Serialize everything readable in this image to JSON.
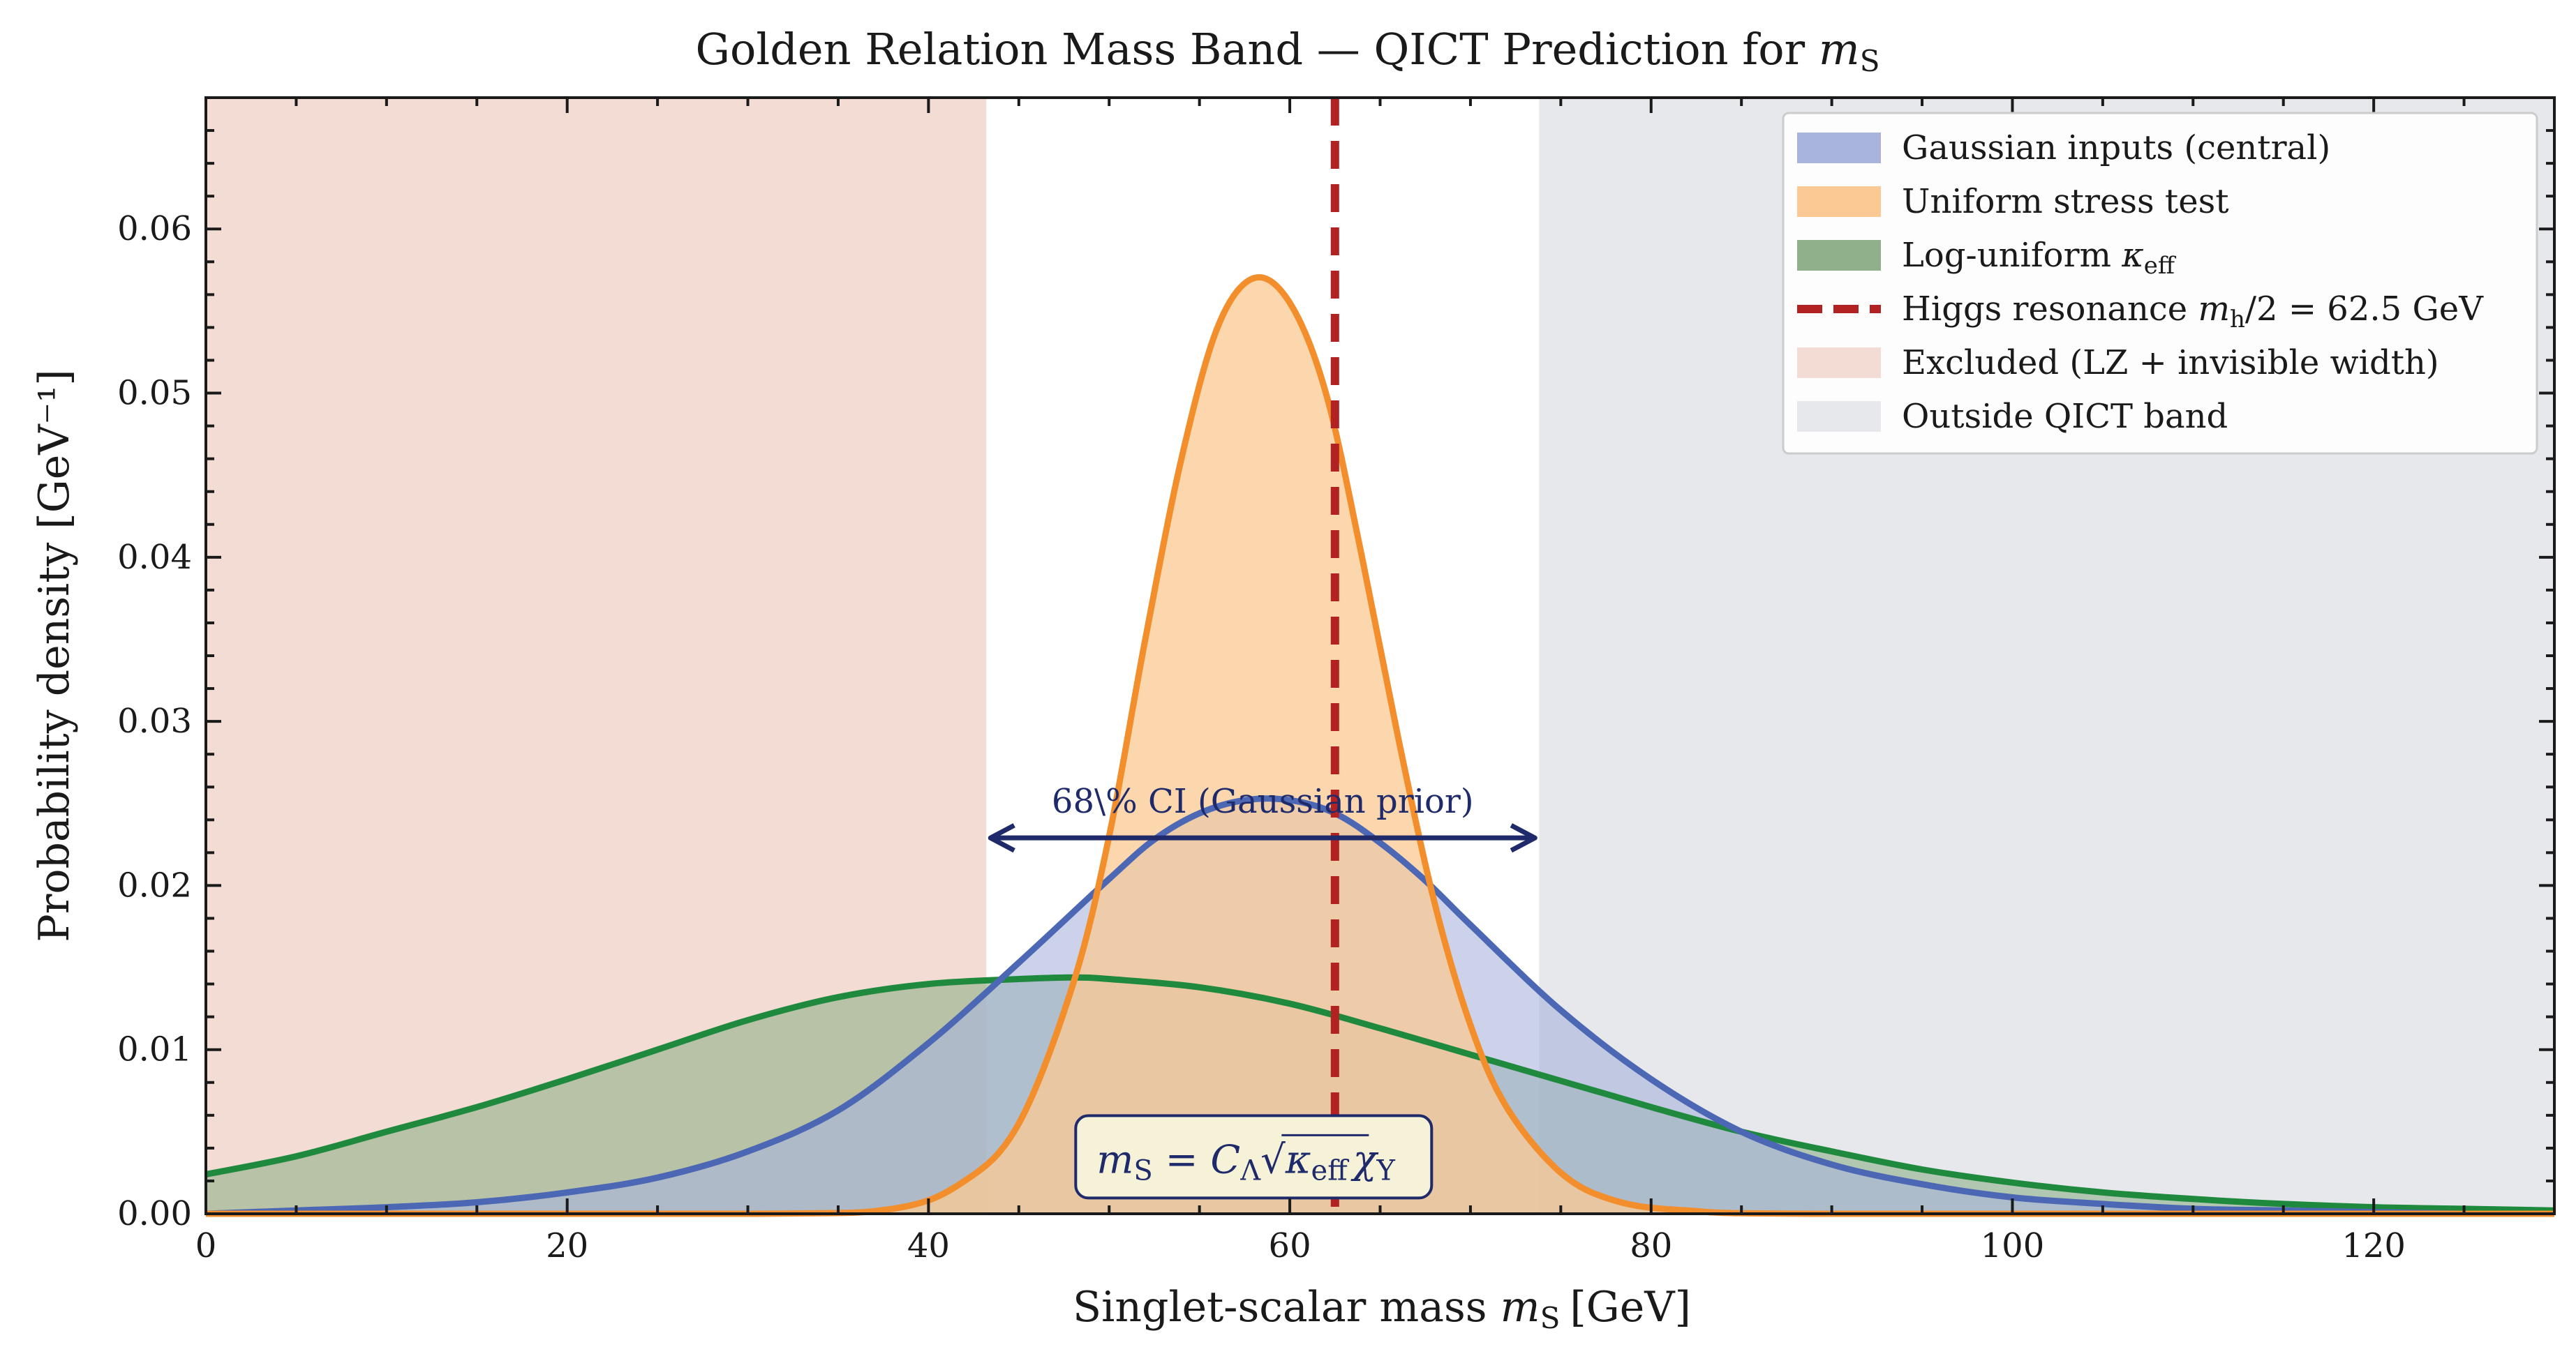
{
  "chart_data": {
    "type": "area",
    "title": "Golden Relation Mass Band — QICT Prediction for",
    "title_symbol": "m",
    "title_symbol_sub": "S",
    "xlabel": "Singlet-scalar mass",
    "xlabel_symbol": "m",
    "xlabel_symbol_sub": "S",
    "xlabel_unit": "[GeV]",
    "ylabel": "Probability density [GeV⁻¹]",
    "xlim": [
      0,
      130
    ],
    "ylim": [
      0,
      0.068
    ],
    "x_ticks": [
      0,
      20,
      40,
      60,
      80,
      100,
      120
    ],
    "y_ticks": [
      0.0,
      0.01,
      0.02,
      0.03,
      0.04,
      0.05,
      0.06
    ],
    "grid": false,
    "legend_position": "top-right",
    "series": [
      {
        "name": "Gaussian inputs (central)",
        "color": "#4c67b3",
        "fill": "#a9b4dc",
        "x": [
          0,
          5,
          10,
          15,
          20,
          25,
          30,
          35,
          40,
          45,
          50,
          52.5,
          55,
          57.5,
          60,
          62.5,
          65,
          67.5,
          70,
          75,
          80,
          85,
          90,
          95,
          100,
          105,
          110,
          115,
          120,
          125,
          130
        ],
        "y": [
          0.0,
          0.0002,
          0.0004,
          0.0007,
          0.0013,
          0.0022,
          0.0038,
          0.0063,
          0.0104,
          0.0153,
          0.0204,
          0.0228,
          0.0244,
          0.0252,
          0.0252,
          0.0244,
          0.0226,
          0.0203,
          0.0176,
          0.0124,
          0.0082,
          0.005,
          0.003,
          0.0018,
          0.001,
          0.0006,
          0.0003,
          0.0002,
          0.0001,
          0.0,
          0.0
        ]
      },
      {
        "name": "Uniform stress test",
        "color": "#f28e2b",
        "fill": "#fbc993",
        "x": [
          0,
          30,
          38,
          42,
          45,
          48,
          50,
          52,
          54,
          56,
          58,
          60,
          62,
          64,
          66,
          68,
          70,
          72,
          75,
          78,
          82,
          90,
          130
        ],
        "y": [
          0.0,
          0.0,
          0.0003,
          0.002,
          0.0055,
          0.014,
          0.023,
          0.035,
          0.046,
          0.054,
          0.057,
          0.0555,
          0.05,
          0.04,
          0.029,
          0.019,
          0.0115,
          0.0065,
          0.0025,
          0.0008,
          0.0002,
          0.0,
          0.0
        ]
      },
      {
        "name": "Log-uniform",
        "name_symbol": "κ",
        "name_symbol_sub": "eff",
        "color": "#1f8a3e",
        "fill": "#8fb08a",
        "x": [
          0,
          5,
          10,
          15,
          20,
          25,
          30,
          35,
          40,
          45,
          48,
          50,
          55,
          60,
          65,
          70,
          75,
          80,
          85,
          90,
          95,
          100,
          105,
          110,
          115,
          120,
          125,
          130
        ],
        "y": [
          0.0024,
          0.0035,
          0.005,
          0.0065,
          0.0082,
          0.01,
          0.0118,
          0.0132,
          0.014,
          0.0143,
          0.0144,
          0.0143,
          0.0138,
          0.0128,
          0.0113,
          0.0097,
          0.0081,
          0.0065,
          0.005,
          0.0038,
          0.0027,
          0.0019,
          0.0013,
          0.0009,
          0.0006,
          0.0004,
          0.0003,
          0.0002
        ]
      }
    ],
    "higgs_line": {
      "label": "Higgs resonance",
      "label_math": "m",
      "label_math_sub": "h",
      "label_math_rest": "/2 = 62.5 GeV",
      "x": 62.5,
      "color": "#b22222"
    },
    "excluded_region": {
      "label": "Excluded (LZ + invisible width)",
      "x_range": [
        0,
        43.2
      ],
      "color": "#f2dcd3"
    },
    "outside_region": {
      "label": "Outside QICT band",
      "x_range": [
        73.8,
        130
      ],
      "color": "#e6e8ec"
    },
    "ci_annotation": {
      "label": "68\\% CI (Gaussian prior)",
      "x_range": [
        43.2,
        73.8
      ],
      "y": 0.0229,
      "color": "#1f2a6b"
    },
    "formula_box": {
      "lhs": "m",
      "lhs_sub": "S",
      "eq": " = ",
      "c": "C",
      "c_sub": "Λ",
      "root_body": "κ",
      "root_body_sub": "eff",
      "root_tail": "χ",
      "root_tail_sub": "Y",
      "x": 58,
      "y": 0.003
    }
  }
}
